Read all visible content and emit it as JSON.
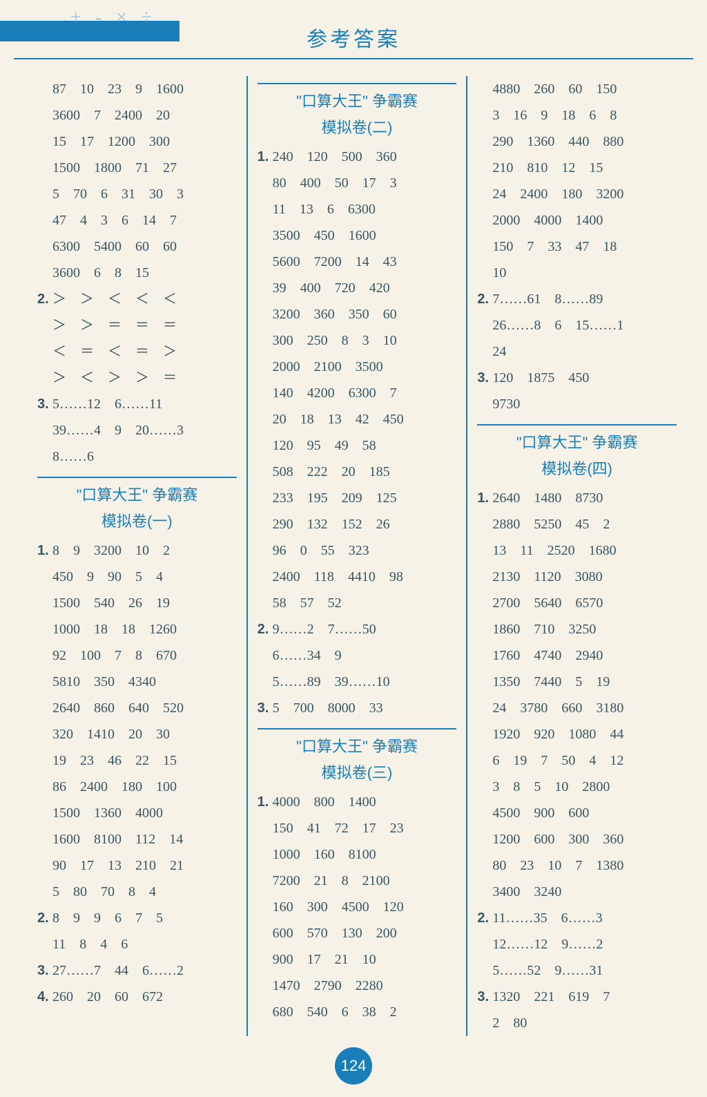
{
  "header": {
    "title": "参考答案",
    "decor": "+ - × ÷"
  },
  "page_number": "124",
  "columns": {
    "c1": {
      "block1": {
        "lines": [
          "87　10　23　9　1600",
          "3600　7　2400　20",
          "15　17　1200　300",
          "1500　1800　71　27",
          "5　70　6　31　30　3",
          "47　4　3　6　14　7",
          "6300　5400　60　60",
          "3600　6　8　15"
        ],
        "q2": "＞　＞　＜　＜　＜",
        "q2_cont": [
          "＞　＞　＝　＝　＝",
          "＜　＝　＜　＝　＞",
          "＞　＜　＞　＞　＝"
        ],
        "q3": "5……12　6……11",
        "q3_cont": [
          "39……4　9　20……3",
          "8……6"
        ]
      },
      "block2": {
        "title1": "\"口算大王\" 争霸赛",
        "title2": "模拟卷(一)",
        "q1": "8　9　3200　10　2",
        "q1_cont": [
          "450　9　90　5　4",
          "1500　540　26　19",
          "1000　18　18　1260",
          "92　100　7　8　670",
          "5810　350　4340",
          "2640　860　640　520",
          "320　1410　20　30",
          "19　23　46　22　15",
          "86　2400　180　100",
          "1500　1360　4000",
          "1600　8100　112　14",
          "90　17　13　210　21",
          "5　80　70　8　4"
        ],
        "q2": "8　9　9　6　7　5",
        "q2_cont": [
          "11　8　4　6"
        ],
        "q3": "27……7　44　6……2",
        "q4": "260　20　60　672"
      }
    },
    "c2": {
      "block1": {
        "title1": "\"口算大王\" 争霸赛",
        "title2": "模拟卷(二)",
        "q1": "240　120　500　360",
        "q1_cont": [
          "80　400　50　17　3",
          "11　13　6　6300",
          "3500　450　1600",
          "5600　7200　14　43",
          "39　400　720　420",
          "3200　360　350　60",
          "300　250　8　3　10",
          "2000　2100　3500",
          "140　4200　6300　7",
          "20　18　13　42　450",
          "120　95　49　58",
          "508　222　20　185",
          "233　195　209　125",
          "290　132　152　26",
          "96　0　55　323",
          "2400　118　4410　98",
          "58　57　52"
        ],
        "q2": "9……2　7……50",
        "q2_cont": [
          "6……34　9",
          "5……89　39……10"
        ],
        "q3": "5　700　8000　33"
      },
      "block2": {
        "title1": "\"口算大王\" 争霸赛",
        "title2": "模拟卷(三)",
        "q1": "4000　800　1400",
        "q1_cont": [
          "150　41　72　17　23",
          "1000　160　8100",
          "7200　21　8　2100",
          "160　300　4500　120",
          "600　570　130　200",
          "900　17　21　10",
          "1470　2790　2280",
          "680　540　6　38　2"
        ]
      }
    },
    "c3": {
      "block1": {
        "lines": [
          "4880　260　60　150",
          "3　16　9　18　6　8",
          "290　1360　440　880",
          "210　810　12　15",
          "24　2400　180　3200",
          "2000　4000　1400",
          "150　7　33　47　18",
          "10"
        ],
        "q2": "7……61　8……89",
        "q2_cont": [
          "26……8　6　15……1",
          "24"
        ],
        "q3": "120　1875　450",
        "q3_cont": [
          "9730"
        ]
      },
      "block2": {
        "title1": "\"口算大王\" 争霸赛",
        "title2": "模拟卷(四)",
        "q1": "2640　1480　8730",
        "q1_cont": [
          "2880　5250　45　2",
          "13　11　2520　1680",
          "2130　1120　3080",
          "2700　5640　6570",
          "1860　710　3250",
          "1760　4740　2940",
          "1350　7440　5　19",
          "24　3780　660　3180",
          "1920　920　1080　44",
          "6　19　7　50　4　12",
          "3　8　5　10　2800",
          "4500　900　600",
          "1200　600　300　360",
          "80　23　10　7　1380",
          "3400　3240"
        ],
        "q2": "11……35　6……3",
        "q2_cont": [
          "12……12　9……2",
          "5……52　9……31"
        ],
        "q3": "1320　221　619　7",
        "q3_cont": [
          "2　80"
        ]
      }
    }
  }
}
